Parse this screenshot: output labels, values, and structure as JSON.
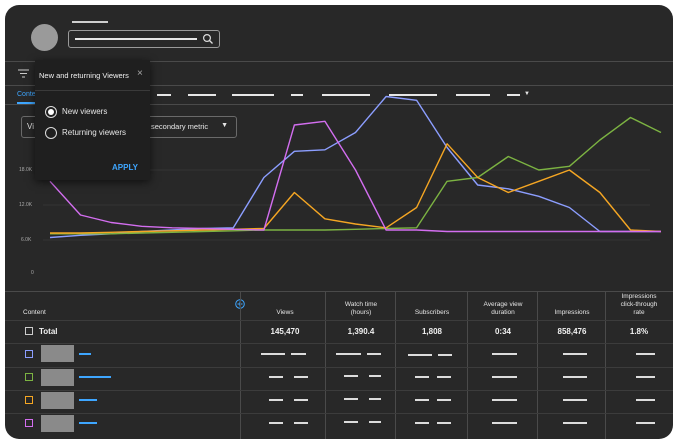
{
  "app": {
    "filter_popup": {
      "title": "New and returning Viewers",
      "options": [
        {
          "label": "New viewers",
          "selected": true
        },
        {
          "label": "Returning viewers",
          "selected": false
        }
      ],
      "apply_label": "APPLY"
    },
    "active_tab": "Conte",
    "left_dropdown": "Vi",
    "metric_dropdown": "secondary metric"
  },
  "chart_data": {
    "type": "line",
    "ylim": [
      0,
      22000
    ],
    "yticks": [
      "18.0K",
      "12.0K",
      "6.0K",
      "0"
    ],
    "x": [
      1,
      2,
      3,
      4,
      5,
      6,
      7,
      8,
      9,
      10,
      11,
      12,
      13,
      14,
      15,
      16,
      17,
      18,
      19,
      20,
      21
    ],
    "series": [
      {
        "color": "#8c9eff",
        "values": [
          5000,
          5300,
          5500,
          5800,
          6000,
          6200,
          6300,
          13000,
          16500,
          16700,
          19000,
          23800,
          23300,
          17000,
          12000,
          11500,
          10500,
          9000,
          5800,
          5800,
          5800
        ]
      },
      {
        "color": "#7cb342",
        "values": [
          5500,
          5500,
          5500,
          5600,
          5700,
          5800,
          5900,
          6000,
          6000,
          6000,
          6100,
          6200,
          6300,
          12500,
          13000,
          15800,
          14000,
          14500,
          18000,
          21000,
          19000
        ]
      },
      {
        "color": "#f5a623",
        "values": [
          5600,
          5600,
          5700,
          5800,
          5900,
          6000,
          6100,
          6200,
          11000,
          7500,
          6800,
          6300,
          9000,
          17500,
          13000,
          11000,
          12500,
          14000,
          11000,
          6000,
          5800
        ]
      },
      {
        "color": "#d36ef0",
        "values": [
          12500,
          8000,
          7000,
          6500,
          6300,
          6200,
          6100,
          6000,
          20000,
          20500,
          14000,
          6000,
          6000,
          5800,
          5800,
          5800,
          5800,
          5800,
          5800,
          5800,
          5800
        ]
      }
    ]
  },
  "table": {
    "content_header": "Content",
    "headers": [
      "Views",
      "Watch time\n(hours)",
      "Subscribers",
      "Average view\nduration",
      "Impressions",
      "Impressions\nclick-through\nrate"
    ],
    "total_label": "Total",
    "totals": [
      "145,470",
      "1,390.4",
      "1,808",
      "0:34",
      "858,476",
      "1.8%"
    ],
    "row_colors": [
      "#8c9eff",
      "#7cb342",
      "#f5a623",
      "#d36ef0"
    ]
  },
  "icons": {
    "search": "search-icon",
    "filter": "filter-icon",
    "close": "close-icon",
    "add_column": "plus-circle-icon",
    "dropdown": "triangle-down-icon"
  }
}
